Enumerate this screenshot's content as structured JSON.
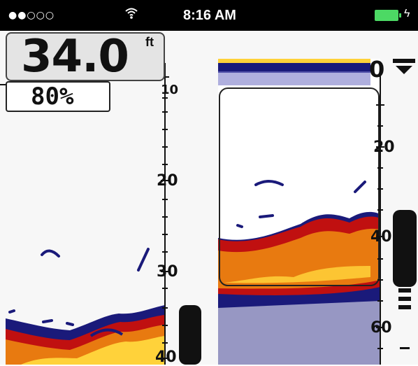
{
  "status_bar": {
    "signal_dots": "●●○○○",
    "time": "8:16 AM"
  },
  "readout": {
    "depth_value": "34.0",
    "depth_unit": "ft",
    "battery_percent": "80%"
  },
  "left_scale_labels": [
    "10",
    "20",
    "30",
    "40"
  ],
  "zoom_scale_labels": [
    "0",
    "20",
    "40",
    "60"
  ],
  "colors": {
    "sonar_dark_blue": "#1a1a7a",
    "sonar_red": "#c01010",
    "sonar_orange": "#e87a10",
    "sonar_yellow": "#ffd23a",
    "battery_green": "#4cd964",
    "background": "#f7f7f7"
  }
}
